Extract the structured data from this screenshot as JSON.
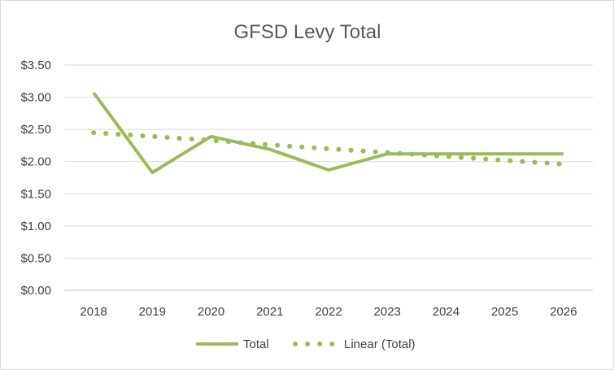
{
  "chart_data": {
    "type": "line",
    "title": "GFSD Levy Total",
    "xlabel": "",
    "ylabel": "",
    "categories": [
      "2018",
      "2019",
      "2020",
      "2021",
      "2022",
      "2023",
      "2024",
      "2025",
      "2026"
    ],
    "ylim": [
      0,
      3.5
    ],
    "yticks": [
      0,
      0.5,
      1.0,
      1.5,
      2.0,
      2.5,
      3.0,
      3.5
    ],
    "ytick_labels": [
      "$0.00",
      "$0.50",
      "$1.00",
      "$1.50",
      "$2.00",
      "$2.50",
      "$3.00",
      "$3.50"
    ],
    "grid": true,
    "legend_position": "bottom",
    "series": [
      {
        "name": "Total",
        "style": "solid",
        "color": "#9bbb59",
        "values": [
          3.07,
          1.83,
          2.39,
          2.19,
          1.87,
          2.12,
          2.12,
          2.12,
          2.12
        ]
      },
      {
        "name": "Linear (Total)",
        "style": "dotted",
        "color": "#9bbb59",
        "values": [
          2.45,
          2.39,
          2.33,
          2.26,
          2.2,
          2.14,
          2.08,
          2.02,
          1.96
        ]
      }
    ]
  }
}
